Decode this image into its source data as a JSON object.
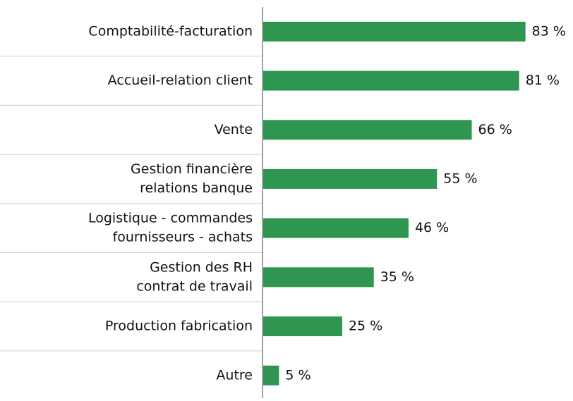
{
  "chart_data": {
    "type": "bar",
    "orientation": "horizontal",
    "categories": [
      [
        "Comptabilité-facturation"
      ],
      [
        "Accueil-relation client"
      ],
      [
        "Vente"
      ],
      [
        "Gestion financière",
        "relations banque"
      ],
      [
        "Logistique - commandes",
        "fournisseurs - achats"
      ],
      [
        "Gestion des RH",
        "contrat de travail"
      ],
      [
        "Production fabrication"
      ],
      [
        "Autre"
      ]
    ],
    "values": [
      83,
      81,
      66,
      55,
      46,
      35,
      25,
      5
    ],
    "value_labels": [
      "83 %",
      "81 %",
      "66 %",
      "55 %",
      "46 %",
      "35 %",
      "25 %",
      "5 %"
    ],
    "color": "#2e9650",
    "xlim": [
      0,
      90
    ]
  }
}
